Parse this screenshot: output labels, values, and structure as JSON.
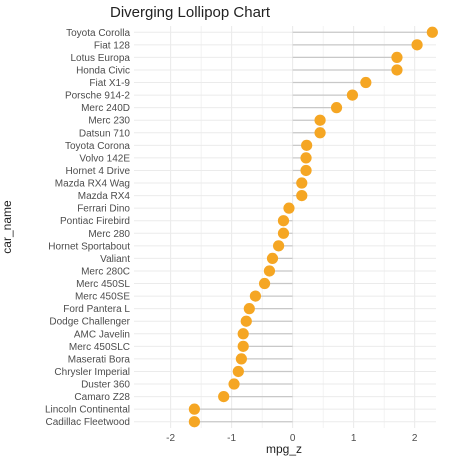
{
  "chart_data": {
    "type": "lollipop",
    "title": "Diverging Lollipop Chart",
    "xlabel": "mpg_z",
    "ylabel": "car_name",
    "xlim": [
      -2.6,
      2.35
    ],
    "x_ticks": [
      -2,
      -1,
      0,
      1,
      2
    ],
    "x_tick_labels": [
      "-2",
      "-1",
      "0",
      "1",
      "2"
    ],
    "grid": true,
    "marker_color": "#f5a623",
    "stem_color": "#c8c8c8",
    "panel_background": "#ffffff",
    "grid_color": "#ebebeb",
    "points": [
      {
        "car": "Toyota Corolla",
        "mpg_z": 2.29
      },
      {
        "car": "Fiat 128",
        "mpg_z": 2.04
      },
      {
        "car": "Lotus Europa",
        "mpg_z": 1.71
      },
      {
        "car": "Honda Civic",
        "mpg_z": 1.71
      },
      {
        "car": "Fiat X1-9",
        "mpg_z": 1.2
      },
      {
        "car": "Porsche 914-2",
        "mpg_z": 0.98
      },
      {
        "car": "Merc 240D",
        "mpg_z": 0.72
      },
      {
        "car": "Merc 230",
        "mpg_z": 0.45
      },
      {
        "car": "Datsun 710",
        "mpg_z": 0.45
      },
      {
        "car": "Toyota Corona",
        "mpg_z": 0.23
      },
      {
        "car": "Volvo 142E",
        "mpg_z": 0.22
      },
      {
        "car": "Hornet 4 Drive",
        "mpg_z": 0.22
      },
      {
        "car": "Mazda RX4 Wag",
        "mpg_z": 0.15
      },
      {
        "car": "Mazda RX4",
        "mpg_z": 0.15
      },
      {
        "car": "Ferrari Dino",
        "mpg_z": -0.06
      },
      {
        "car": "Pontiac Firebird",
        "mpg_z": -0.15
      },
      {
        "car": "Merc 280",
        "mpg_z": -0.15
      },
      {
        "car": "Hornet Sportabout",
        "mpg_z": -0.23
      },
      {
        "car": "Valiant",
        "mpg_z": -0.33
      },
      {
        "car": "Merc 280C",
        "mpg_z": -0.38
      },
      {
        "car": "Merc 450SL",
        "mpg_z": -0.46
      },
      {
        "car": "Merc 450SE",
        "mpg_z": -0.61
      },
      {
        "car": "Ford Pantera L",
        "mpg_z": -0.71
      },
      {
        "car": "Dodge Challenger",
        "mpg_z": -0.76
      },
      {
        "car": "AMC Javelin",
        "mpg_z": -0.81
      },
      {
        "car": "Merc 450SLC",
        "mpg_z": -0.81
      },
      {
        "car": "Maserati Bora",
        "mpg_z": -0.84
      },
      {
        "car": "Chrysler Imperial",
        "mpg_z": -0.89
      },
      {
        "car": "Duster 360",
        "mpg_z": -0.96
      },
      {
        "car": "Camaro Z28",
        "mpg_z": -1.13
      },
      {
        "car": "Lincoln Continental",
        "mpg_z": -1.61
      },
      {
        "car": "Cadillac Fleetwood",
        "mpg_z": -1.61
      }
    ]
  }
}
